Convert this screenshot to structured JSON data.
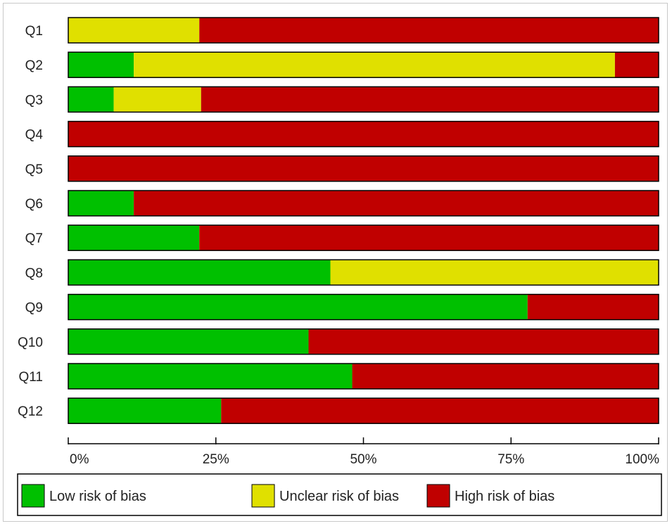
{
  "chart_data": {
    "type": "bar",
    "stacked": true,
    "orientation": "horizontal",
    "categories": [
      "Q1",
      "Q2",
      "Q3",
      "Q4",
      "Q5",
      "Q6",
      "Q7",
      "Q8",
      "Q9",
      "Q10",
      "Q11",
      "Q12"
    ],
    "series": [
      {
        "name": "Low risk of bias",
        "color": "#00c000",
        "values": [
          0,
          11.1,
          7.7,
          0,
          0,
          11.1,
          22.2,
          44.4,
          77.8,
          40.7,
          48.1,
          25.9
        ]
      },
      {
        "name": "Unclear risk of bias",
        "color": "#e0e000",
        "values": [
          22.2,
          81.5,
          14.8,
          0,
          0,
          0,
          0,
          55.6,
          0,
          0,
          0,
          0
        ]
      },
      {
        "name": "High risk of bias",
        "color": "#c00000",
        "values": [
          77.8,
          7.4,
          77.5,
          100,
          100,
          88.9,
          77.8,
          0,
          22.2,
          59.3,
          51.9,
          74.1
        ]
      }
    ],
    "xlim": [
      0,
      100
    ],
    "x_ticks": [
      0,
      25,
      50,
      75,
      100
    ],
    "x_tick_labels": [
      "0%",
      "25%",
      "50%",
      "75%",
      "100%"
    ],
    "xlabel": "",
    "ylabel": "",
    "title": "",
    "grid": false,
    "legend_position": "bottom"
  }
}
